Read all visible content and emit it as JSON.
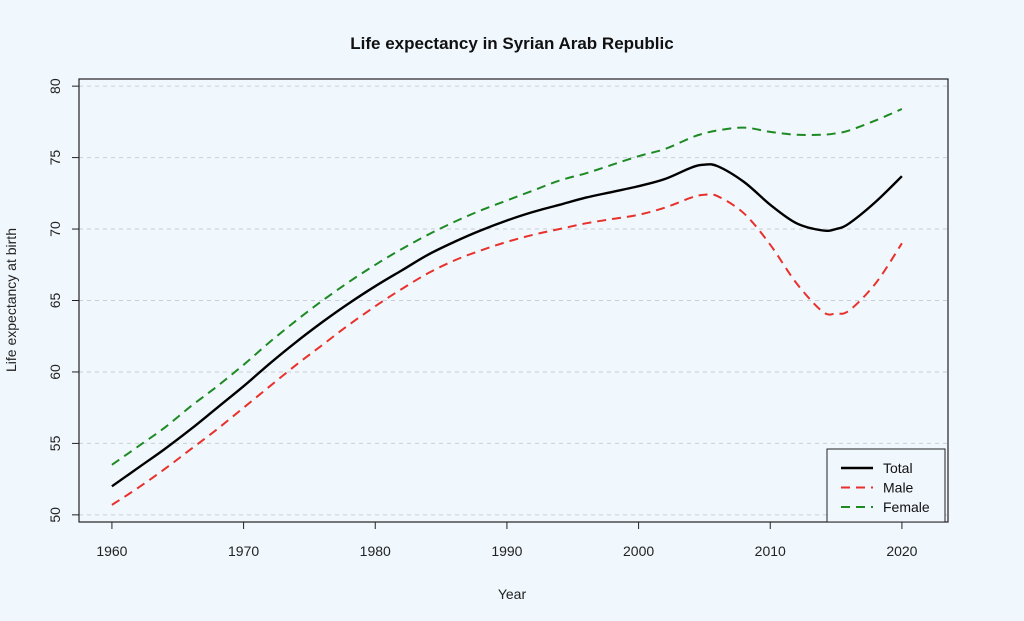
{
  "chart_data": {
    "type": "line",
    "title": "Life expectancy in Syrian Arab Republic",
    "xlabel": "Year",
    "ylabel": "Life expectancy at birth",
    "xlim": [
      1957.5,
      2023.5
    ],
    "ylim": [
      49.5,
      80.5
    ],
    "xticks": [
      1960,
      1970,
      1980,
      1990,
      2000,
      2010,
      2020
    ],
    "yticks": [
      50,
      55,
      60,
      65,
      70,
      75,
      80
    ],
    "grid": "horizontal dashed",
    "legend_position": "bottom-right",
    "x": [
      1960,
      1962,
      1964,
      1966,
      1968,
      1970,
      1972,
      1974,
      1976,
      1978,
      1980,
      1982,
      1984,
      1986,
      1988,
      1990,
      1992,
      1994,
      1996,
      1998,
      2000,
      2002,
      2004,
      2005,
      2006,
      2008,
      2010,
      2012,
      2014,
      2015,
      2016,
      2018,
      2020
    ],
    "series": [
      {
        "name": "Total",
        "color": "#000000",
        "dash": "solid",
        "values": [
          52.0,
          53.3,
          54.6,
          56.0,
          57.5,
          59.0,
          60.6,
          62.1,
          63.5,
          64.8,
          66.0,
          67.1,
          68.2,
          69.1,
          69.9,
          70.6,
          71.2,
          71.7,
          72.2,
          72.6,
          73.0,
          73.5,
          74.3,
          74.5,
          74.4,
          73.3,
          71.7,
          70.4,
          69.9,
          70.0,
          70.4,
          71.9,
          73.7
        ]
      },
      {
        "name": "Male",
        "color": "#e8312b",
        "dash": "dashed",
        "values": [
          50.7,
          51.9,
          53.2,
          54.6,
          56.0,
          57.5,
          59.0,
          60.5,
          61.9,
          63.3,
          64.6,
          65.8,
          66.9,
          67.8,
          68.5,
          69.1,
          69.6,
          70.0,
          70.4,
          70.7,
          71.0,
          71.5,
          72.2,
          72.4,
          72.3,
          71.1,
          68.9,
          66.2,
          64.2,
          64.1,
          64.3,
          66.2,
          69.0
        ]
      },
      {
        "name": "Female",
        "color": "#1e8a24",
        "dash": "dashed",
        "values": [
          53.5,
          54.8,
          56.1,
          57.6,
          59.0,
          60.5,
          62.1,
          63.6,
          65.0,
          66.3,
          67.5,
          68.6,
          69.6,
          70.5,
          71.3,
          72.0,
          72.7,
          73.4,
          73.9,
          74.5,
          75.1,
          75.6,
          76.4,
          76.7,
          76.9,
          77.1,
          76.8,
          76.6,
          76.6,
          76.7,
          76.9,
          77.6,
          78.4
        ]
      }
    ]
  }
}
